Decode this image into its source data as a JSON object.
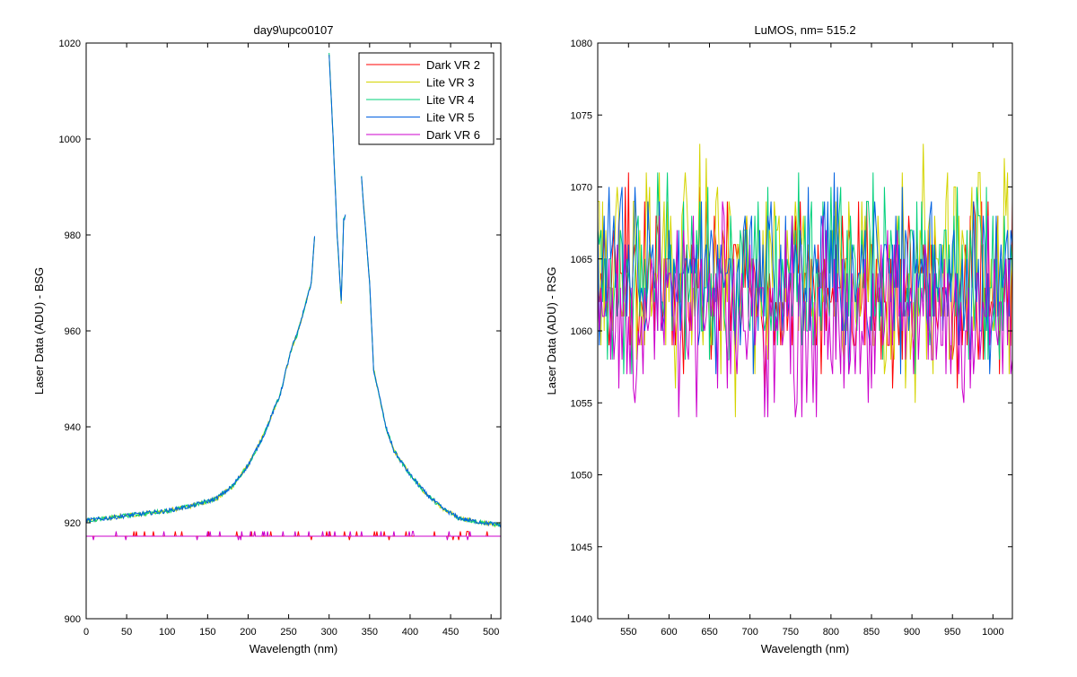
{
  "chart_data": [
    {
      "type": "line",
      "title": "day9\\upco0107",
      "xlabel": "Wavelength (nm)",
      "ylabel": "Laser Data (ADU) - BSG",
      "xlim": [
        0,
        512
      ],
      "ylim": [
        900,
        1020
      ],
      "xticks": [
        0,
        50,
        100,
        150,
        200,
        250,
        300,
        350,
        400,
        450,
        500
      ],
      "yticks": [
        900,
        920,
        940,
        960,
        980,
        1000,
        1020
      ],
      "grid": false,
      "legend_location": "top-right",
      "series": [
        {
          "name": "Dark VR 2",
          "color": "#ff0000",
          "kind": "flat",
          "baseline": 917.2
        },
        {
          "name": "Lite VR 3",
          "color": "#d4d400",
          "kind": "peak"
        },
        {
          "name": "Lite VR 4",
          "color": "#00d07a",
          "kind": "peak"
        },
        {
          "name": "Lite VR 5",
          "color": "#0060e0",
          "kind": "peak"
        },
        {
          "name": "Dark VR 6",
          "color": "#cc00cc",
          "kind": "flat",
          "baseline": 917.2
        }
      ],
      "peak_profile": {
        "x": [
          0,
          20,
          50,
          100,
          130,
          160,
          180,
          200,
          220,
          240,
          250,
          255,
          260,
          270,
          278,
          280,
          300,
          305,
          310,
          315,
          318,
          340,
          350,
          355,
          360,
          370,
          380,
          400,
          420,
          440,
          460,
          480,
          500,
          512
        ],
        "y": [
          920.5,
          920.8,
          921.5,
          922.5,
          923.5,
          925,
          927.5,
          932,
          938.5,
          947,
          954,
          957,
          959,
          965,
          970,
          975,
          1018,
          1000,
          980,
          966,
          983,
          992,
          970,
          952,
          948,
          940,
          935,
          930,
          926,
          923,
          921,
          920.3,
          919.8,
          919.5
        ]
      }
    },
    {
      "type": "line",
      "title": "LuMOS, nm= 515.2",
      "xlabel": "Wavelength (nm)",
      "ylabel": "Laser Data (ADU) - RSG",
      "xlim": [
        512,
        1024
      ],
      "ylim": [
        1040,
        1080
      ],
      "xticks": [
        550,
        600,
        650,
        700,
        750,
        800,
        850,
        900,
        950,
        1000
      ],
      "yticks": [
        1040,
        1045,
        1050,
        1055,
        1060,
        1065,
        1070,
        1075,
        1080
      ],
      "grid": false,
      "series": [
        {
          "name": "Dark VR 2",
          "color": "#ff0000",
          "mean": 1063,
          "spread": 5
        },
        {
          "name": "Lite VR 3",
          "color": "#d4d400",
          "mean": 1064,
          "spread": 6
        },
        {
          "name": "Lite VR 4",
          "color": "#00d07a",
          "mean": 1064,
          "spread": 5.5
        },
        {
          "name": "Lite VR 5",
          "color": "#0060e0",
          "mean": 1064,
          "spread": 5
        },
        {
          "name": "Dark VR 6",
          "color": "#cc00cc",
          "mean": 1061,
          "spread": 5
        }
      ]
    }
  ]
}
